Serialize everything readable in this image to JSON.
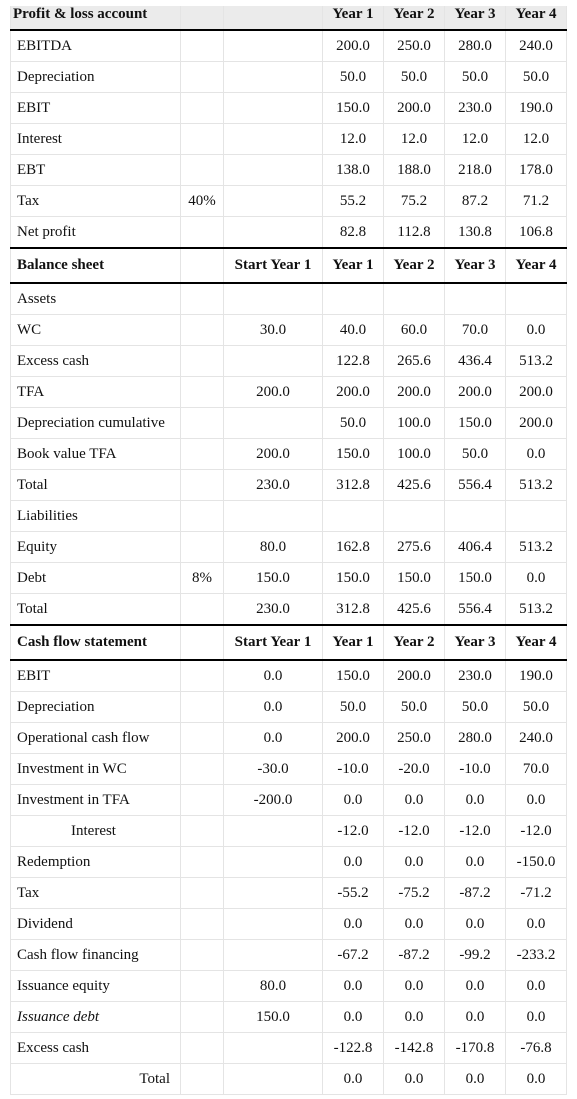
{
  "sections": [
    {
      "header": {
        "title": "Profit & loss account",
        "years": [
          "Year 1",
          "Year 2",
          "Year 3",
          "Year 4"
        ]
      },
      "rows": [
        {
          "label": "EBITDA",
          "years": [
            "200.0",
            "250.0",
            "280.0",
            "240.0"
          ]
        },
        {
          "label": "Depreciation",
          "years": [
            "50.0",
            "50.0",
            "50.0",
            "50.0"
          ]
        },
        {
          "label": "EBIT",
          "years": [
            "150.0",
            "200.0",
            "230.0",
            "190.0"
          ]
        },
        {
          "label": "Interest",
          "years": [
            "12.0",
            "12.0",
            "12.0",
            "12.0"
          ]
        },
        {
          "label": "EBT",
          "years": [
            "138.0",
            "188.0",
            "218.0",
            "178.0"
          ]
        },
        {
          "label": "Tax",
          "rate": "40%",
          "years": [
            "55.2",
            "75.2",
            "87.2",
            "71.2"
          ]
        },
        {
          "label": "Net profit",
          "years": [
            "82.8",
            "112.8",
            "130.8",
            "106.8"
          ]
        }
      ]
    },
    {
      "header": {
        "title": "Balance sheet",
        "start": "Start Year 1",
        "years": [
          "Year 1",
          "Year 2",
          "Year 3",
          "Year 4"
        ]
      },
      "rows": [
        {
          "label": "Assets"
        },
        {
          "label": "WC",
          "start": "30.0",
          "years": [
            "40.0",
            "60.0",
            "70.0",
            "0.0"
          ]
        },
        {
          "label": "Excess cash",
          "years": [
            "122.8",
            "265.6",
            "436.4",
            "513.2"
          ]
        },
        {
          "label": "TFA",
          "start": "200.0",
          "years": [
            "200.0",
            "200.0",
            "200.0",
            "200.0"
          ]
        },
        {
          "label": "Depreciation cumulative",
          "years": [
            "50.0",
            "100.0",
            "150.0",
            "200.0"
          ]
        },
        {
          "label": "Book value TFA",
          "start": "200.0",
          "years": [
            "150.0",
            "100.0",
            "50.0",
            "0.0"
          ]
        },
        {
          "label": "Total",
          "start": "230.0",
          "years": [
            "312.8",
            "425.6",
            "556.4",
            "513.2"
          ]
        },
        {
          "label": "Liabilities"
        },
        {
          "label": "Equity",
          "start": "80.0",
          "years": [
            "162.8",
            "275.6",
            "406.4",
            "513.2"
          ]
        },
        {
          "label": "Debt",
          "rate": "8%",
          "start": "150.0",
          "years": [
            "150.0",
            "150.0",
            "150.0",
            "0.0"
          ]
        },
        {
          "label": "Total",
          "start": "230.0",
          "years": [
            "312.8",
            "425.6",
            "556.4",
            "513.2"
          ]
        }
      ]
    },
    {
      "header": {
        "title": "Cash flow statement",
        "start": "Start Year 1",
        "years": [
          "Year 1",
          "Year 2",
          "Year 3",
          "Year 4"
        ]
      },
      "rows": [
        {
          "label": "EBIT",
          "start": "0.0",
          "years": [
            "150.0",
            "200.0",
            "230.0",
            "190.0"
          ]
        },
        {
          "label": "Depreciation",
          "start": "0.0",
          "years": [
            "50.0",
            "50.0",
            "50.0",
            "50.0"
          ]
        },
        {
          "label": "Operational cash flow",
          "start": "0.0",
          "years": [
            "200.0",
            "250.0",
            "280.0",
            "240.0"
          ]
        },
        {
          "label": "Investment in WC",
          "start": "-30.0",
          "years": [
            "-10.0",
            "-20.0",
            "-10.0",
            "70.0"
          ]
        },
        {
          "label": "Investment in TFA",
          "start": "-200.0",
          "years": [
            "0.0",
            "0.0",
            "0.0",
            "0.0"
          ]
        },
        {
          "label": "Interest",
          "years": [
            "-12.0",
            "-12.0",
            "-12.0",
            "-12.0"
          ]
        },
        {
          "label": "Redemption",
          "years": [
            "0.0",
            "0.0",
            "0.0",
            "-150.0"
          ]
        },
        {
          "label": "Tax",
          "years": [
            "-55.2",
            "-75.2",
            "-87.2",
            "-71.2"
          ]
        },
        {
          "label": "Dividend",
          "years": [
            "0.0",
            "0.0",
            "0.0",
            "0.0"
          ]
        },
        {
          "label": "Cash flow financing",
          "years": [
            "-67.2",
            "-87.2",
            "-99.2",
            "-233.2"
          ]
        },
        {
          "label": "Issuance equity",
          "start": "80.0",
          "years": [
            "0.0",
            "0.0",
            "0.0",
            "0.0"
          ]
        },
        {
          "label": "Issuance debt",
          "start": "150.0",
          "years": [
            "0.0",
            "0.0",
            "0.0",
            "0.0"
          ]
        },
        {
          "label": "Excess cash",
          "years": [
            "-122.8",
            "-142.8",
            "-170.8",
            "-76.8"
          ]
        },
        {
          "label": "Total",
          "years": [
            "0.0",
            "0.0",
            "0.0",
            "0.0"
          ]
        }
      ]
    }
  ]
}
